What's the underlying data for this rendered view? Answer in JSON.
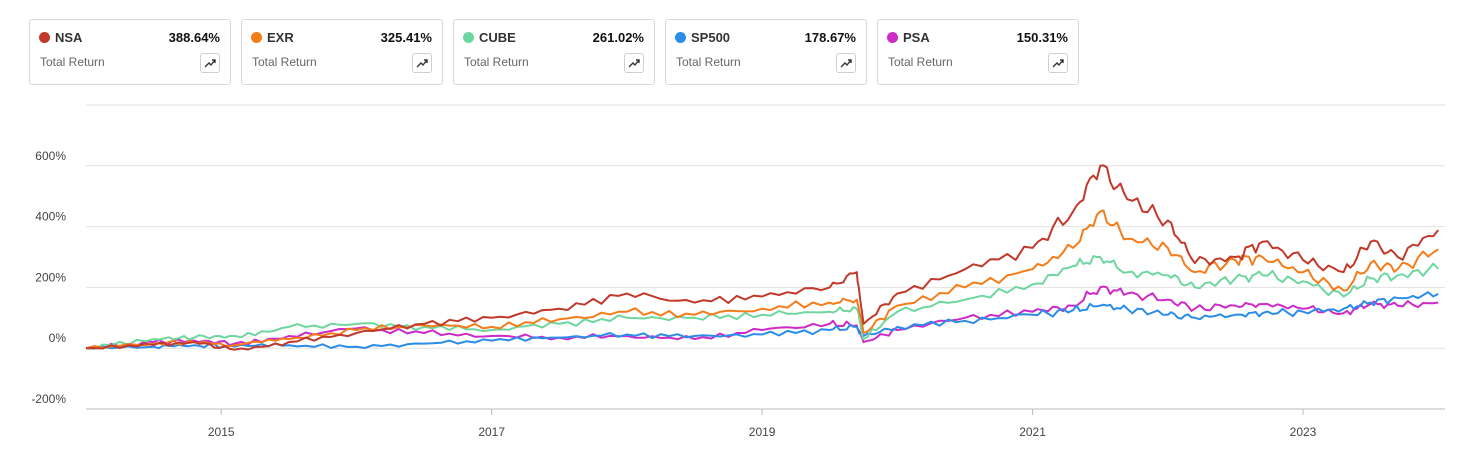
{
  "legend": [
    {
      "ticker": "NSA",
      "value": "388.64%",
      "label": "Total Return",
      "color": "#c0392b",
      "icon": "trend-up-icon"
    },
    {
      "ticker": "EXR",
      "value": "325.41%",
      "label": "Total Return",
      "color": "#f47c1a",
      "icon": "trend-up-icon"
    },
    {
      "ticker": "CUBE",
      "value": "261.02%",
      "label": "Total Return",
      "color": "#6fd6a0",
      "icon": "trend-up-icon"
    },
    {
      "ticker": "SP500",
      "value": "178.67%",
      "label": "Total Return",
      "color": "#2b8de8",
      "icon": "trend-up-icon"
    },
    {
      "ticker": "PSA",
      "value": "150.31%",
      "label": "Total Return",
      "color": "#cc2bc8",
      "icon": "trend-up-icon"
    }
  ],
  "chart_data": {
    "type": "line",
    "xlabel": "",
    "ylabel": "",
    "xlim": [
      2014.0,
      2024.05
    ],
    "ylim": [
      -200,
      800
    ],
    "y_ticks": [
      {
        "value": 600,
        "label": "600%"
      },
      {
        "value": 400,
        "label": "400%"
      },
      {
        "value": 200,
        "label": "200%"
      },
      {
        "value": 0,
        "label": "0%"
      },
      {
        "value": -200,
        "label": "-200%"
      }
    ],
    "x_ticks": [
      {
        "value": 2015,
        "label": "2015"
      },
      {
        "value": 2017,
        "label": "2017"
      },
      {
        "value": 2019,
        "label": "2019"
      },
      {
        "value": 2021,
        "label": "2021"
      },
      {
        "value": 2023,
        "label": "2023"
      }
    ],
    "grid": true,
    "series": [
      {
        "name": "NSA",
        "color": "#c0392b",
        "points": [
          [
            2014.0,
            0
          ],
          [
            2014.5,
            10
          ],
          [
            2014.8,
            20
          ],
          [
            2015.1,
            -5
          ],
          [
            2015.5,
            20
          ],
          [
            2016.0,
            50
          ],
          [
            2016.5,
            80
          ],
          [
            2017.0,
            100
          ],
          [
            2017.5,
            130
          ],
          [
            2018.0,
            180
          ],
          [
            2018.5,
            150
          ],
          [
            2019.0,
            170
          ],
          [
            2019.5,
            200
          ],
          [
            2019.7,
            250
          ],
          [
            2019.75,
            80
          ],
          [
            2020.0,
            180
          ],
          [
            2020.5,
            260
          ],
          [
            2021.0,
            330
          ],
          [
            2021.3,
            450
          ],
          [
            2021.5,
            600
          ],
          [
            2021.7,
            490
          ],
          [
            2022.0,
            420
          ],
          [
            2022.2,
            280
          ],
          [
            2022.5,
            300
          ],
          [
            2022.7,
            350
          ],
          [
            2023.0,
            290
          ],
          [
            2023.3,
            250
          ],
          [
            2023.5,
            350
          ],
          [
            2023.7,
            300
          ],
          [
            2024.0,
            388.64
          ]
        ]
      },
      {
        "name": "EXR",
        "color": "#f47c1a",
        "points": [
          [
            2014.0,
            0
          ],
          [
            2014.5,
            15
          ],
          [
            2014.8,
            20
          ],
          [
            2015.1,
            10
          ],
          [
            2015.5,
            30
          ],
          [
            2016.0,
            60
          ],
          [
            2016.5,
            75
          ],
          [
            2017.0,
            70
          ],
          [
            2017.5,
            95
          ],
          [
            2018.0,
            120
          ],
          [
            2018.5,
            110
          ],
          [
            2019.0,
            130
          ],
          [
            2019.5,
            150
          ],
          [
            2019.7,
            160
          ],
          [
            2019.75,
            50
          ],
          [
            2020.0,
            140
          ],
          [
            2020.5,
            200
          ],
          [
            2021.0,
            260
          ],
          [
            2021.3,
            330
          ],
          [
            2021.5,
            450
          ],
          [
            2021.7,
            360
          ],
          [
            2022.0,
            330
          ],
          [
            2022.2,
            250
          ],
          [
            2022.5,
            290
          ],
          [
            2022.7,
            300
          ],
          [
            2023.0,
            250
          ],
          [
            2023.3,
            190
          ],
          [
            2023.5,
            280
          ],
          [
            2023.7,
            260
          ],
          [
            2024.0,
            325.41
          ]
        ]
      },
      {
        "name": "CUBE",
        "color": "#6fd6a0",
        "points": [
          [
            2014.0,
            0
          ],
          [
            2014.5,
            30
          ],
          [
            2014.8,
            35
          ],
          [
            2015.1,
            40
          ],
          [
            2015.5,
            70
          ],
          [
            2016.0,
            80
          ],
          [
            2016.5,
            70
          ],
          [
            2017.0,
            60
          ],
          [
            2017.5,
            80
          ],
          [
            2018.0,
            100
          ],
          [
            2018.5,
            100
          ],
          [
            2019.0,
            110
          ],
          [
            2019.5,
            120
          ],
          [
            2019.7,
            130
          ],
          [
            2019.75,
            30
          ],
          [
            2020.0,
            120
          ],
          [
            2020.5,
            160
          ],
          [
            2021.0,
            210
          ],
          [
            2021.3,
            270
          ],
          [
            2021.5,
            300
          ],
          [
            2021.7,
            250
          ],
          [
            2022.0,
            240
          ],
          [
            2022.2,
            200
          ],
          [
            2022.5,
            230
          ],
          [
            2022.7,
            240
          ],
          [
            2023.0,
            220
          ],
          [
            2023.3,
            170
          ],
          [
            2023.5,
            230
          ],
          [
            2023.7,
            240
          ],
          [
            2024.0,
            261.02
          ]
        ]
      },
      {
        "name": "SP500",
        "color": "#2b8de8",
        "points": [
          [
            2014.0,
            0
          ],
          [
            2014.5,
            5
          ],
          [
            2014.8,
            10
          ],
          [
            2015.1,
            5
          ],
          [
            2015.5,
            10
          ],
          [
            2016.0,
            5
          ],
          [
            2016.5,
            15
          ],
          [
            2017.0,
            25
          ],
          [
            2017.5,
            35
          ],
          [
            2018.0,
            45
          ],
          [
            2018.5,
            40
          ],
          [
            2019.0,
            45
          ],
          [
            2019.5,
            60
          ],
          [
            2019.7,
            70
          ],
          [
            2019.75,
            40
          ],
          [
            2020.0,
            70
          ],
          [
            2020.5,
            90
          ],
          [
            2021.0,
            110
          ],
          [
            2021.3,
            125
          ],
          [
            2021.5,
            140
          ],
          [
            2021.7,
            130
          ],
          [
            2022.0,
            110
          ],
          [
            2022.2,
            100
          ],
          [
            2022.5,
            110
          ],
          [
            2022.7,
            115
          ],
          [
            2023.0,
            120
          ],
          [
            2023.3,
            130
          ],
          [
            2023.5,
            150
          ],
          [
            2023.7,
            165
          ],
          [
            2024.0,
            178.67
          ]
        ]
      },
      {
        "name": "PSA",
        "color": "#cc2bc8",
        "points": [
          [
            2014.0,
            0
          ],
          [
            2014.5,
            20
          ],
          [
            2014.8,
            25
          ],
          [
            2015.1,
            15
          ],
          [
            2015.5,
            40
          ],
          [
            2016.0,
            65
          ],
          [
            2016.5,
            50
          ],
          [
            2017.0,
            40
          ],
          [
            2017.5,
            35
          ],
          [
            2018.0,
            40
          ],
          [
            2018.5,
            30
          ],
          [
            2019.0,
            60
          ],
          [
            2019.5,
            80
          ],
          [
            2019.7,
            75
          ],
          [
            2019.75,
            20
          ],
          [
            2020.0,
            60
          ],
          [
            2020.5,
            100
          ],
          [
            2021.0,
            120
          ],
          [
            2021.3,
            140
          ],
          [
            2021.5,
            200
          ],
          [
            2021.7,
            180
          ],
          [
            2022.0,
            160
          ],
          [
            2022.2,
            130
          ],
          [
            2022.5,
            140
          ],
          [
            2022.7,
            145
          ],
          [
            2023.0,
            130
          ],
          [
            2023.3,
            115
          ],
          [
            2023.5,
            145
          ],
          [
            2023.7,
            140
          ],
          [
            2024.0,
            150.31
          ]
        ]
      }
    ]
  }
}
